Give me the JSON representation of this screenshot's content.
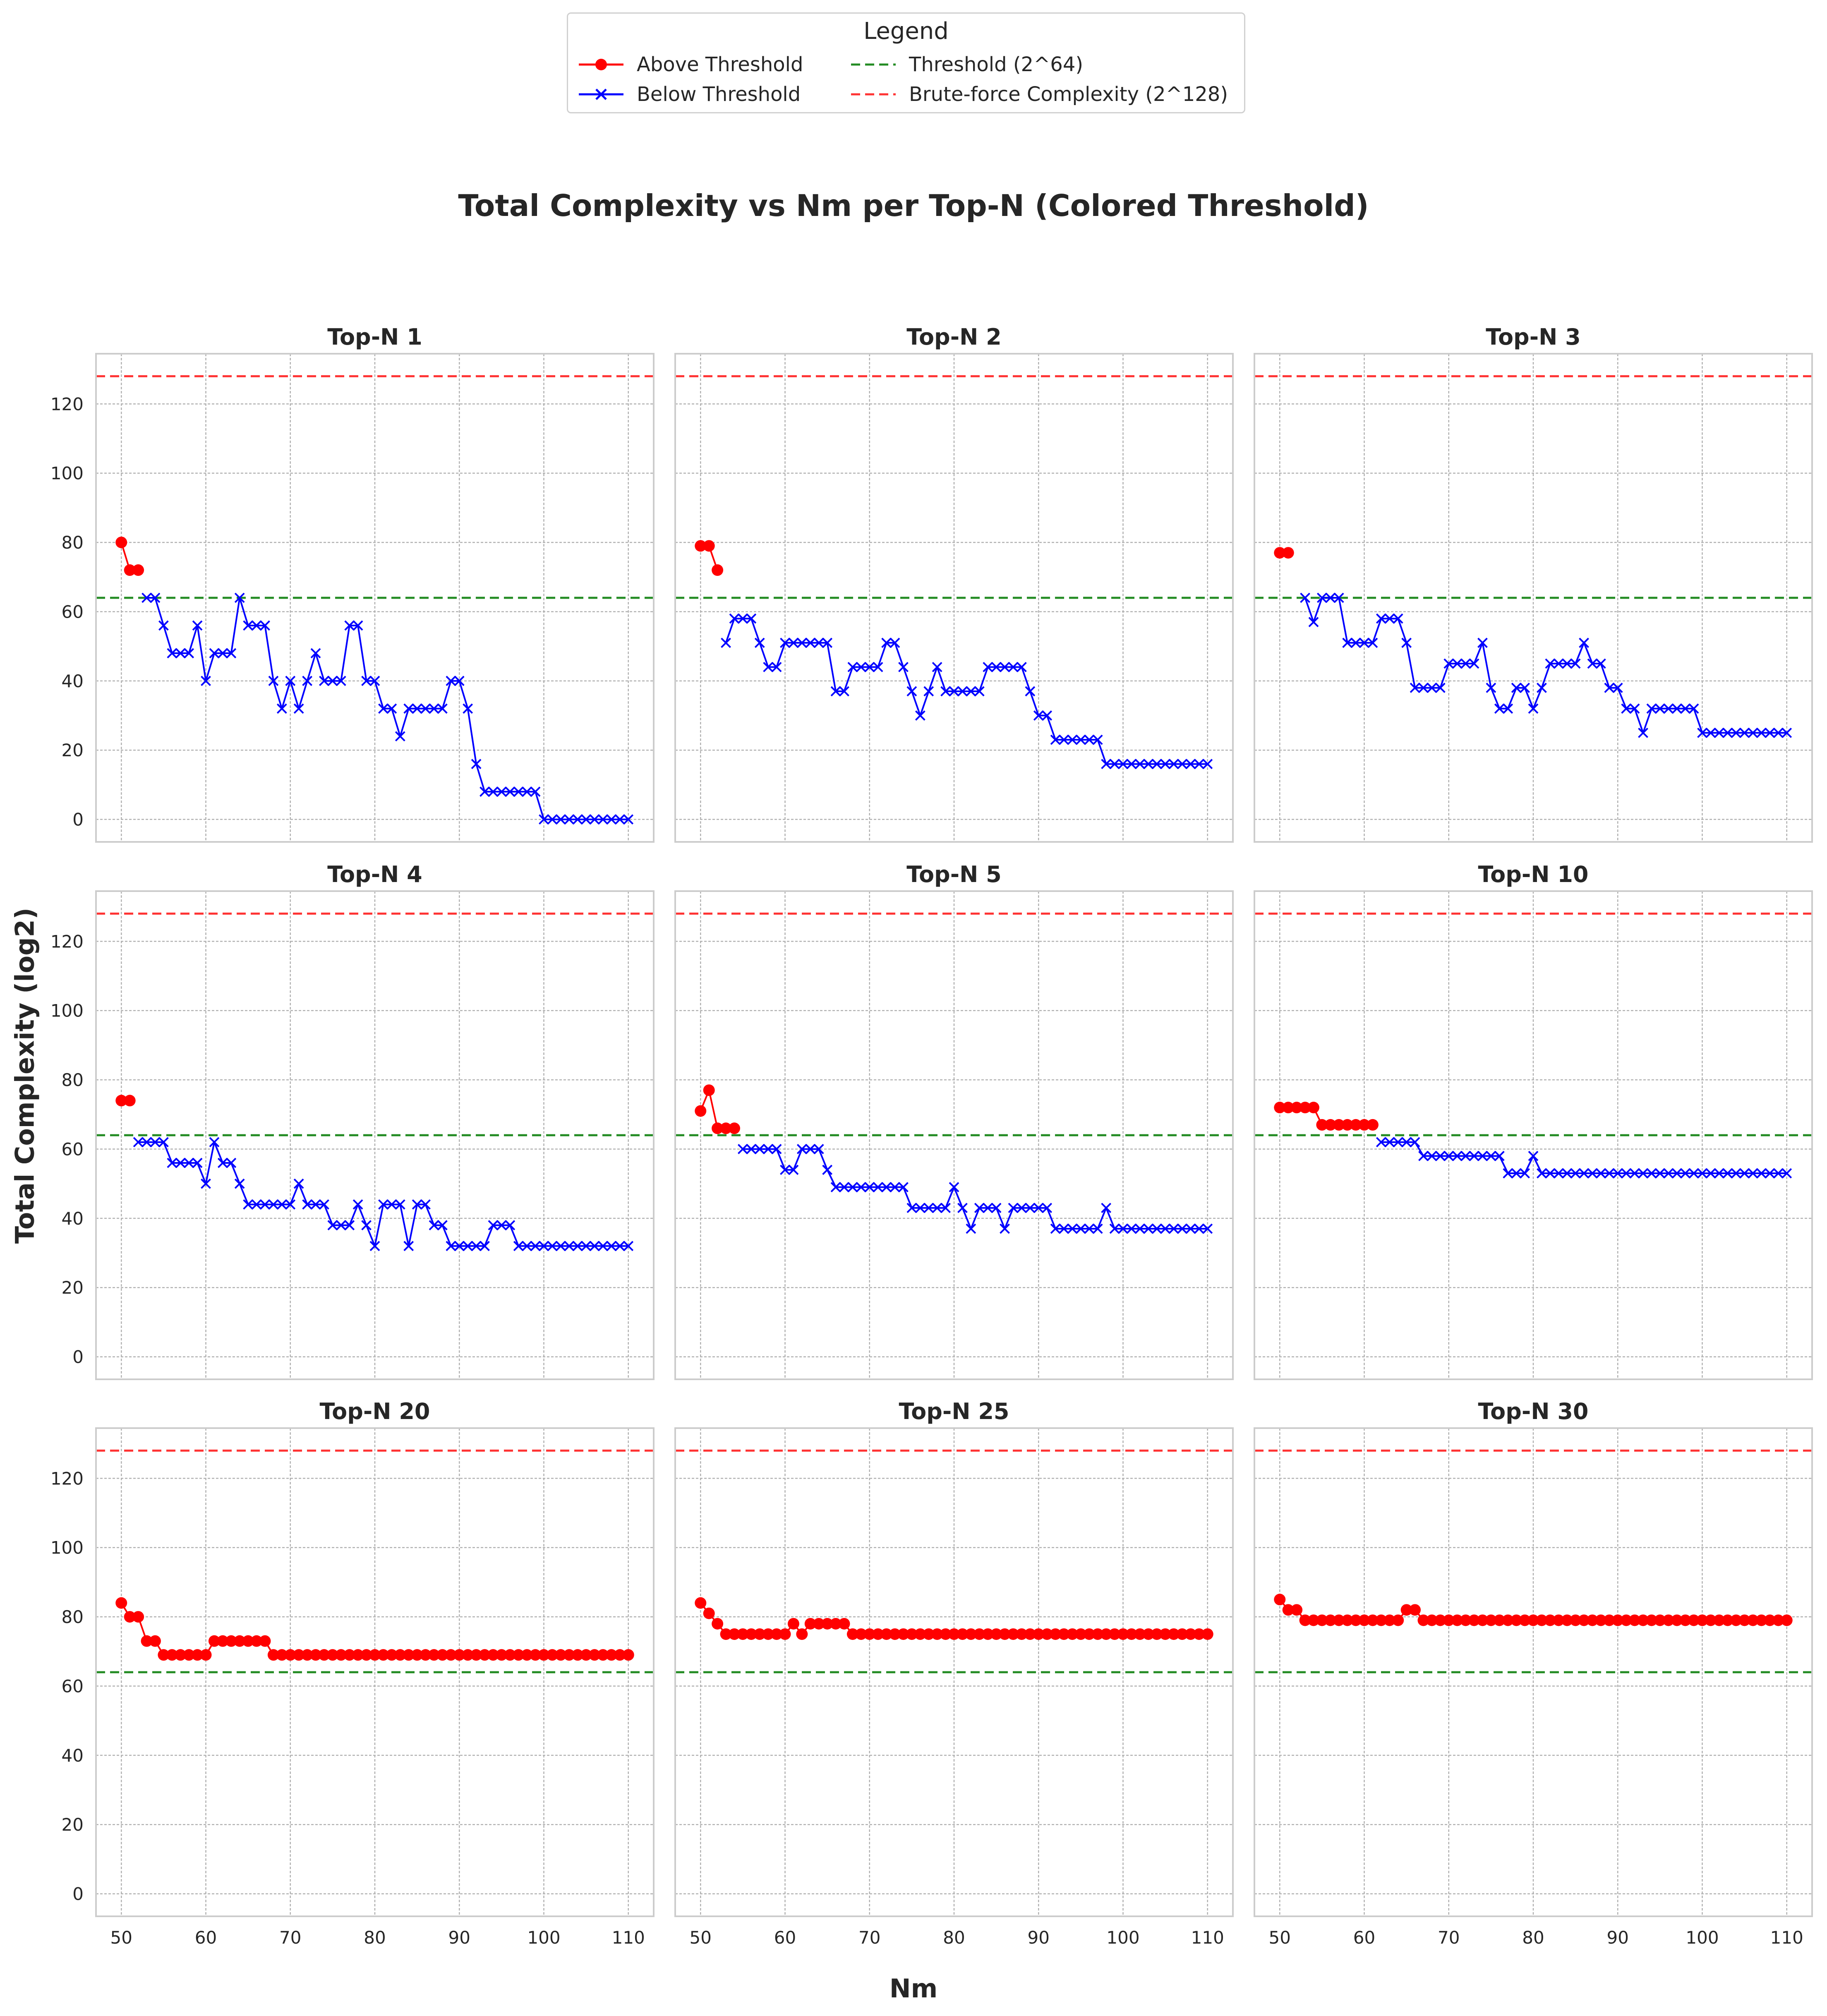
{
  "suptitle": "Total Complexity vs Nm per Top-N (Colored Threshold)",
  "xlabel": "Nm",
  "ylabel": "Total Complexity (log2)",
  "legend": {
    "title": "Legend",
    "entries": [
      {
        "label": "Above Threshold",
        "color": "#ff0000",
        "marker": "circle"
      },
      {
        "label": "Threshold (2^64)",
        "color": "#228b22",
        "style": "dashed"
      },
      {
        "label": "Below Threshold",
        "color": "#0000ff",
        "marker": "x"
      },
      {
        "label": "Brute-force Complexity (2^128)",
        "color": "#ff3333",
        "style": "dashed"
      }
    ]
  },
  "chart_data": {
    "type": "line",
    "threshold": 64,
    "brute_force": 128,
    "xlim": [
      47,
      113
    ],
    "ylim": [
      -6.5,
      134.5
    ],
    "xticks": [
      50,
      60,
      70,
      80,
      90,
      100,
      110
    ],
    "yticks": [
      0,
      20,
      40,
      60,
      80,
      100,
      120
    ],
    "grid": true,
    "x_start": 50,
    "panels": [
      {
        "title": "Top-N 1",
        "values": [
          80,
          72,
          72,
          64,
          64,
          56,
          48,
          48,
          48,
          56,
          40,
          48,
          48,
          48,
          64,
          56,
          56,
          56,
          40,
          32,
          40,
          32,
          40,
          48,
          40,
          40,
          40,
          56,
          56,
          40,
          40,
          32,
          32,
          24,
          32,
          32,
          32,
          32,
          32,
          40,
          40,
          32,
          16,
          8,
          8,
          8,
          8,
          8,
          8,
          8,
          0,
          0,
          0,
          0,
          0,
          0,
          0,
          0,
          0,
          0,
          0
        ]
      },
      {
        "title": "Top-N 2",
        "values": [
          79,
          79,
          72,
          51,
          58,
          58,
          58,
          51,
          44,
          44,
          51,
          51,
          51,
          51,
          51,
          51,
          37,
          37,
          44,
          44,
          44,
          44,
          51,
          51,
          44,
          37,
          30,
          37,
          44,
          37,
          37,
          37,
          37,
          37,
          44,
          44,
          44,
          44,
          44,
          37,
          30,
          30,
          23,
          23,
          23,
          23,
          23,
          23,
          16,
          16,
          16,
          16,
          16,
          16,
          16,
          16,
          16,
          16,
          16,
          16,
          16
        ]
      },
      {
        "title": "Top-N 3",
        "values": [
          77,
          77,
          null,
          64,
          57,
          64,
          64,
          64,
          51,
          51,
          51,
          51,
          58,
          58,
          58,
          51,
          38,
          38,
          38,
          38,
          45,
          45,
          45,
          45,
          51,
          38,
          32,
          32,
          38,
          38,
          32,
          38,
          45,
          45,
          45,
          45,
          51,
          45,
          45,
          38,
          38,
          32,
          32,
          25,
          32,
          32,
          32,
          32,
          32,
          32,
          25,
          25,
          25,
          25,
          25,
          25,
          25,
          25,
          25,
          25,
          25
        ]
      },
      {
        "title": "Top-N 4",
        "values": [
          74,
          74,
          62,
          62,
          62,
          62,
          56,
          56,
          56,
          56,
          50,
          62,
          56,
          56,
          50,
          44,
          44,
          44,
          44,
          44,
          44,
          50,
          44,
          44,
          44,
          38,
          38,
          38,
          44,
          38,
          32,
          44,
          44,
          44,
          32,
          44,
          44,
          38,
          38,
          32,
          32,
          32,
          32,
          32,
          38,
          38,
          38,
          32,
          32,
          32,
          32,
          32,
          32,
          32,
          32,
          32,
          32,
          32,
          32,
          32,
          32
        ]
      },
      {
        "title": "Top-N 5",
        "values": [
          71,
          77,
          66,
          66,
          66,
          60,
          60,
          60,
          60,
          60,
          54,
          54,
          60,
          60,
          60,
          54,
          49,
          49,
          49,
          49,
          49,
          49,
          49,
          49,
          49,
          43,
          43,
          43,
          43,
          43,
          49,
          43,
          37,
          43,
          43,
          43,
          37,
          43,
          43,
          43,
          43,
          43,
          37,
          37,
          37,
          37,
          37,
          37,
          43,
          37,
          37,
          37,
          37,
          37,
          37,
          37,
          37,
          37,
          37,
          37,
          37
        ]
      },
      {
        "title": "Top-N 10",
        "values": [
          72,
          72,
          72,
          72,
          72,
          67,
          67,
          67,
          67,
          67,
          67,
          67,
          62,
          62,
          62,
          62,
          62,
          58,
          58,
          58,
          58,
          58,
          58,
          58,
          58,
          58,
          58,
          53,
          53,
          53,
          58,
          53,
          53,
          53,
          53,
          53,
          53,
          53,
          53,
          53,
          53,
          53,
          53,
          53,
          53,
          53,
          53,
          53,
          53,
          53,
          53,
          53,
          53,
          53,
          53,
          53,
          53,
          53,
          53,
          53,
          53
        ]
      },
      {
        "title": "Top-N 20",
        "values": [
          84,
          80,
          80,
          73,
          73,
          69,
          69,
          69,
          69,
          69,
          69,
          73,
          73,
          73,
          73,
          73,
          73,
          73,
          69,
          69,
          69,
          69,
          69,
          69,
          69,
          69,
          69,
          69,
          69,
          69,
          69,
          69,
          69,
          69,
          69,
          69,
          69,
          69,
          69,
          69,
          69,
          69,
          69,
          69,
          69,
          69,
          69,
          69,
          69,
          69,
          69,
          69,
          69,
          69,
          69,
          69,
          69,
          69,
          69,
          69,
          69
        ]
      },
      {
        "title": "Top-N 25",
        "values": [
          84,
          81,
          78,
          75,
          75,
          75,
          75,
          75,
          75,
          75,
          75,
          78,
          75,
          78,
          78,
          78,
          78,
          78,
          75,
          75,
          75,
          75,
          75,
          75,
          75,
          75,
          75,
          75,
          75,
          75,
          75,
          75,
          75,
          75,
          75,
          75,
          75,
          75,
          75,
          75,
          75,
          75,
          75,
          75,
          75,
          75,
          75,
          75,
          75,
          75,
          75,
          75,
          75,
          75,
          75,
          75,
          75,
          75,
          75,
          75,
          75
        ]
      },
      {
        "title": "Top-N 30",
        "values": [
          85,
          82,
          82,
          79,
          79,
          79,
          79,
          79,
          79,
          79,
          79,
          79,
          79,
          79,
          79,
          82,
          82,
          79,
          79,
          79,
          79,
          79,
          79,
          79,
          79,
          79,
          79,
          79,
          79,
          79,
          79,
          79,
          79,
          79,
          79,
          79,
          79,
          79,
          79,
          79,
          79,
          79,
          79,
          79,
          79,
          79,
          79,
          79,
          79,
          79,
          79,
          79,
          79,
          79,
          79,
          79,
          79,
          79,
          79,
          79,
          79
        ]
      }
    ]
  }
}
